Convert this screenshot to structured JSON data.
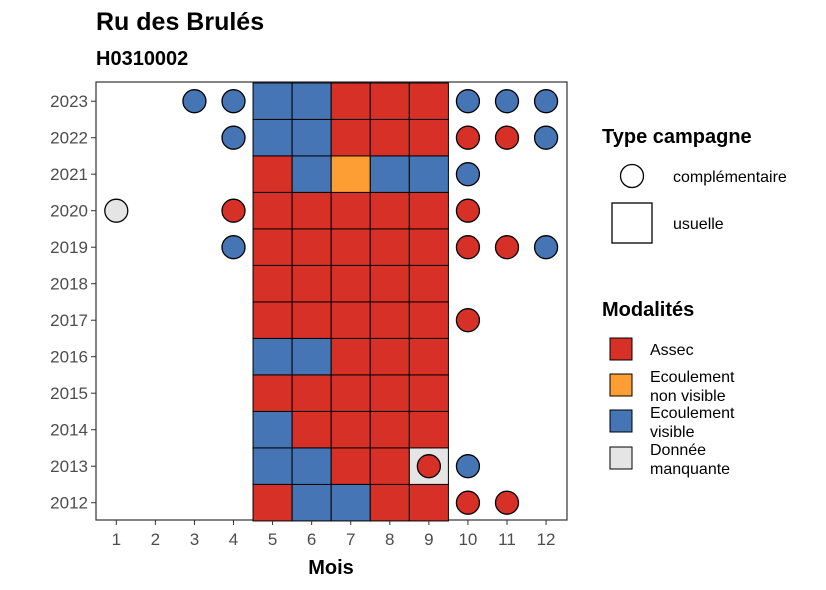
{
  "chart_data": {
    "type": "heatmap",
    "title": "Ru des Brulés",
    "subtitle": "H0310002",
    "xlabel": "Mois",
    "ylabel": "",
    "x": [
      1,
      2,
      3,
      4,
      5,
      6,
      7,
      8,
      9,
      10,
      11,
      12
    ],
    "y": [
      2012,
      2013,
      2014,
      2015,
      2016,
      2017,
      2018,
      2019,
      2020,
      2021,
      2022,
      2023
    ],
    "grid": false,
    "legends": [
      {
        "title": "Type campagne",
        "position": "right",
        "items": [
          {
            "key": "complementaire",
            "label": "complémentaire",
            "shape": "circle"
          },
          {
            "key": "usuelle",
            "label": "usuelle",
            "shape": "square"
          }
        ]
      },
      {
        "title": "Modalités",
        "position": "right",
        "items": [
          {
            "key": "assec",
            "label": [
              "Assec"
            ],
            "color": "#d73027"
          },
          {
            "key": "nonvisible",
            "label": [
              "Ecoulement",
              "non visible"
            ],
            "color": "#fd9e34"
          },
          {
            "key": "visible",
            "label": [
              "Ecoulement",
              "visible"
            ],
            "color": "#4575b4"
          },
          {
            "key": "manquante",
            "label": [
              "Donnée",
              "manquante"
            ],
            "color": "#e5e5e5"
          }
        ]
      }
    ],
    "usuelle": [
      {
        "year": 2023,
        "cells": [
          "visible",
          "visible",
          "assec",
          "assec",
          "assec"
        ]
      },
      {
        "year": 2022,
        "cells": [
          "visible",
          "visible",
          "assec",
          "assec",
          "assec"
        ]
      },
      {
        "year": 2021,
        "cells": [
          "assec",
          "visible",
          "nonvisible",
          "visible",
          "visible"
        ]
      },
      {
        "year": 2020,
        "cells": [
          "assec",
          "assec",
          "assec",
          "assec",
          "assec"
        ]
      },
      {
        "year": 2019,
        "cells": [
          "assec",
          "assec",
          "assec",
          "assec",
          "assec"
        ]
      },
      {
        "year": 2018,
        "cells": [
          "assec",
          "assec",
          "assec",
          "assec",
          "assec"
        ]
      },
      {
        "year": 2017,
        "cells": [
          "assec",
          "assec",
          "assec",
          "assec",
          "assec"
        ]
      },
      {
        "year": 2016,
        "cells": [
          "visible",
          "visible",
          "assec",
          "assec",
          "assec"
        ]
      },
      {
        "year": 2015,
        "cells": [
          "assec",
          "assec",
          "assec",
          "assec",
          "assec"
        ]
      },
      {
        "year": 2014,
        "cells": [
          "visible",
          "assec",
          "assec",
          "assec",
          "assec"
        ]
      },
      {
        "year": 2013,
        "cells": [
          "visible",
          "visible",
          "assec",
          "assec",
          "manquante"
        ]
      },
      {
        "year": 2012,
        "cells": [
          "assec",
          "visible",
          "visible",
          "assec",
          "assec"
        ]
      }
    ],
    "usuelle_months": [
      5,
      6,
      7,
      8,
      9
    ],
    "complementaire": [
      {
        "year": 2023,
        "month": 3,
        "value": "visible"
      },
      {
        "year": 2023,
        "month": 4,
        "value": "visible"
      },
      {
        "year": 2023,
        "month": 10,
        "value": "visible"
      },
      {
        "year": 2023,
        "month": 11,
        "value": "visible"
      },
      {
        "year": 2023,
        "month": 12,
        "value": "visible"
      },
      {
        "year": 2022,
        "month": 4,
        "value": "visible"
      },
      {
        "year": 2022,
        "month": 10,
        "value": "assec"
      },
      {
        "year": 2022,
        "month": 11,
        "value": "assec"
      },
      {
        "year": 2022,
        "month": 12,
        "value": "visible"
      },
      {
        "year": 2021,
        "month": 10,
        "value": "visible"
      },
      {
        "year": 2020,
        "month": 1,
        "value": "manquante"
      },
      {
        "year": 2020,
        "month": 4,
        "value": "assec"
      },
      {
        "year": 2020,
        "month": 10,
        "value": "assec"
      },
      {
        "year": 2019,
        "month": 4,
        "value": "visible"
      },
      {
        "year": 2019,
        "month": 10,
        "value": "assec"
      },
      {
        "year": 2019,
        "month": 11,
        "value": "assec"
      },
      {
        "year": 2019,
        "month": 12,
        "value": "visible"
      },
      {
        "year": 2017,
        "month": 10,
        "value": "assec"
      },
      {
        "year": 2013,
        "month": 9,
        "value": "assec"
      },
      {
        "year": 2013,
        "month": 10,
        "value": "visible"
      },
      {
        "year": 2012,
        "month": 10,
        "value": "assec"
      },
      {
        "year": 2012,
        "month": 11,
        "value": "assec"
      }
    ]
  }
}
